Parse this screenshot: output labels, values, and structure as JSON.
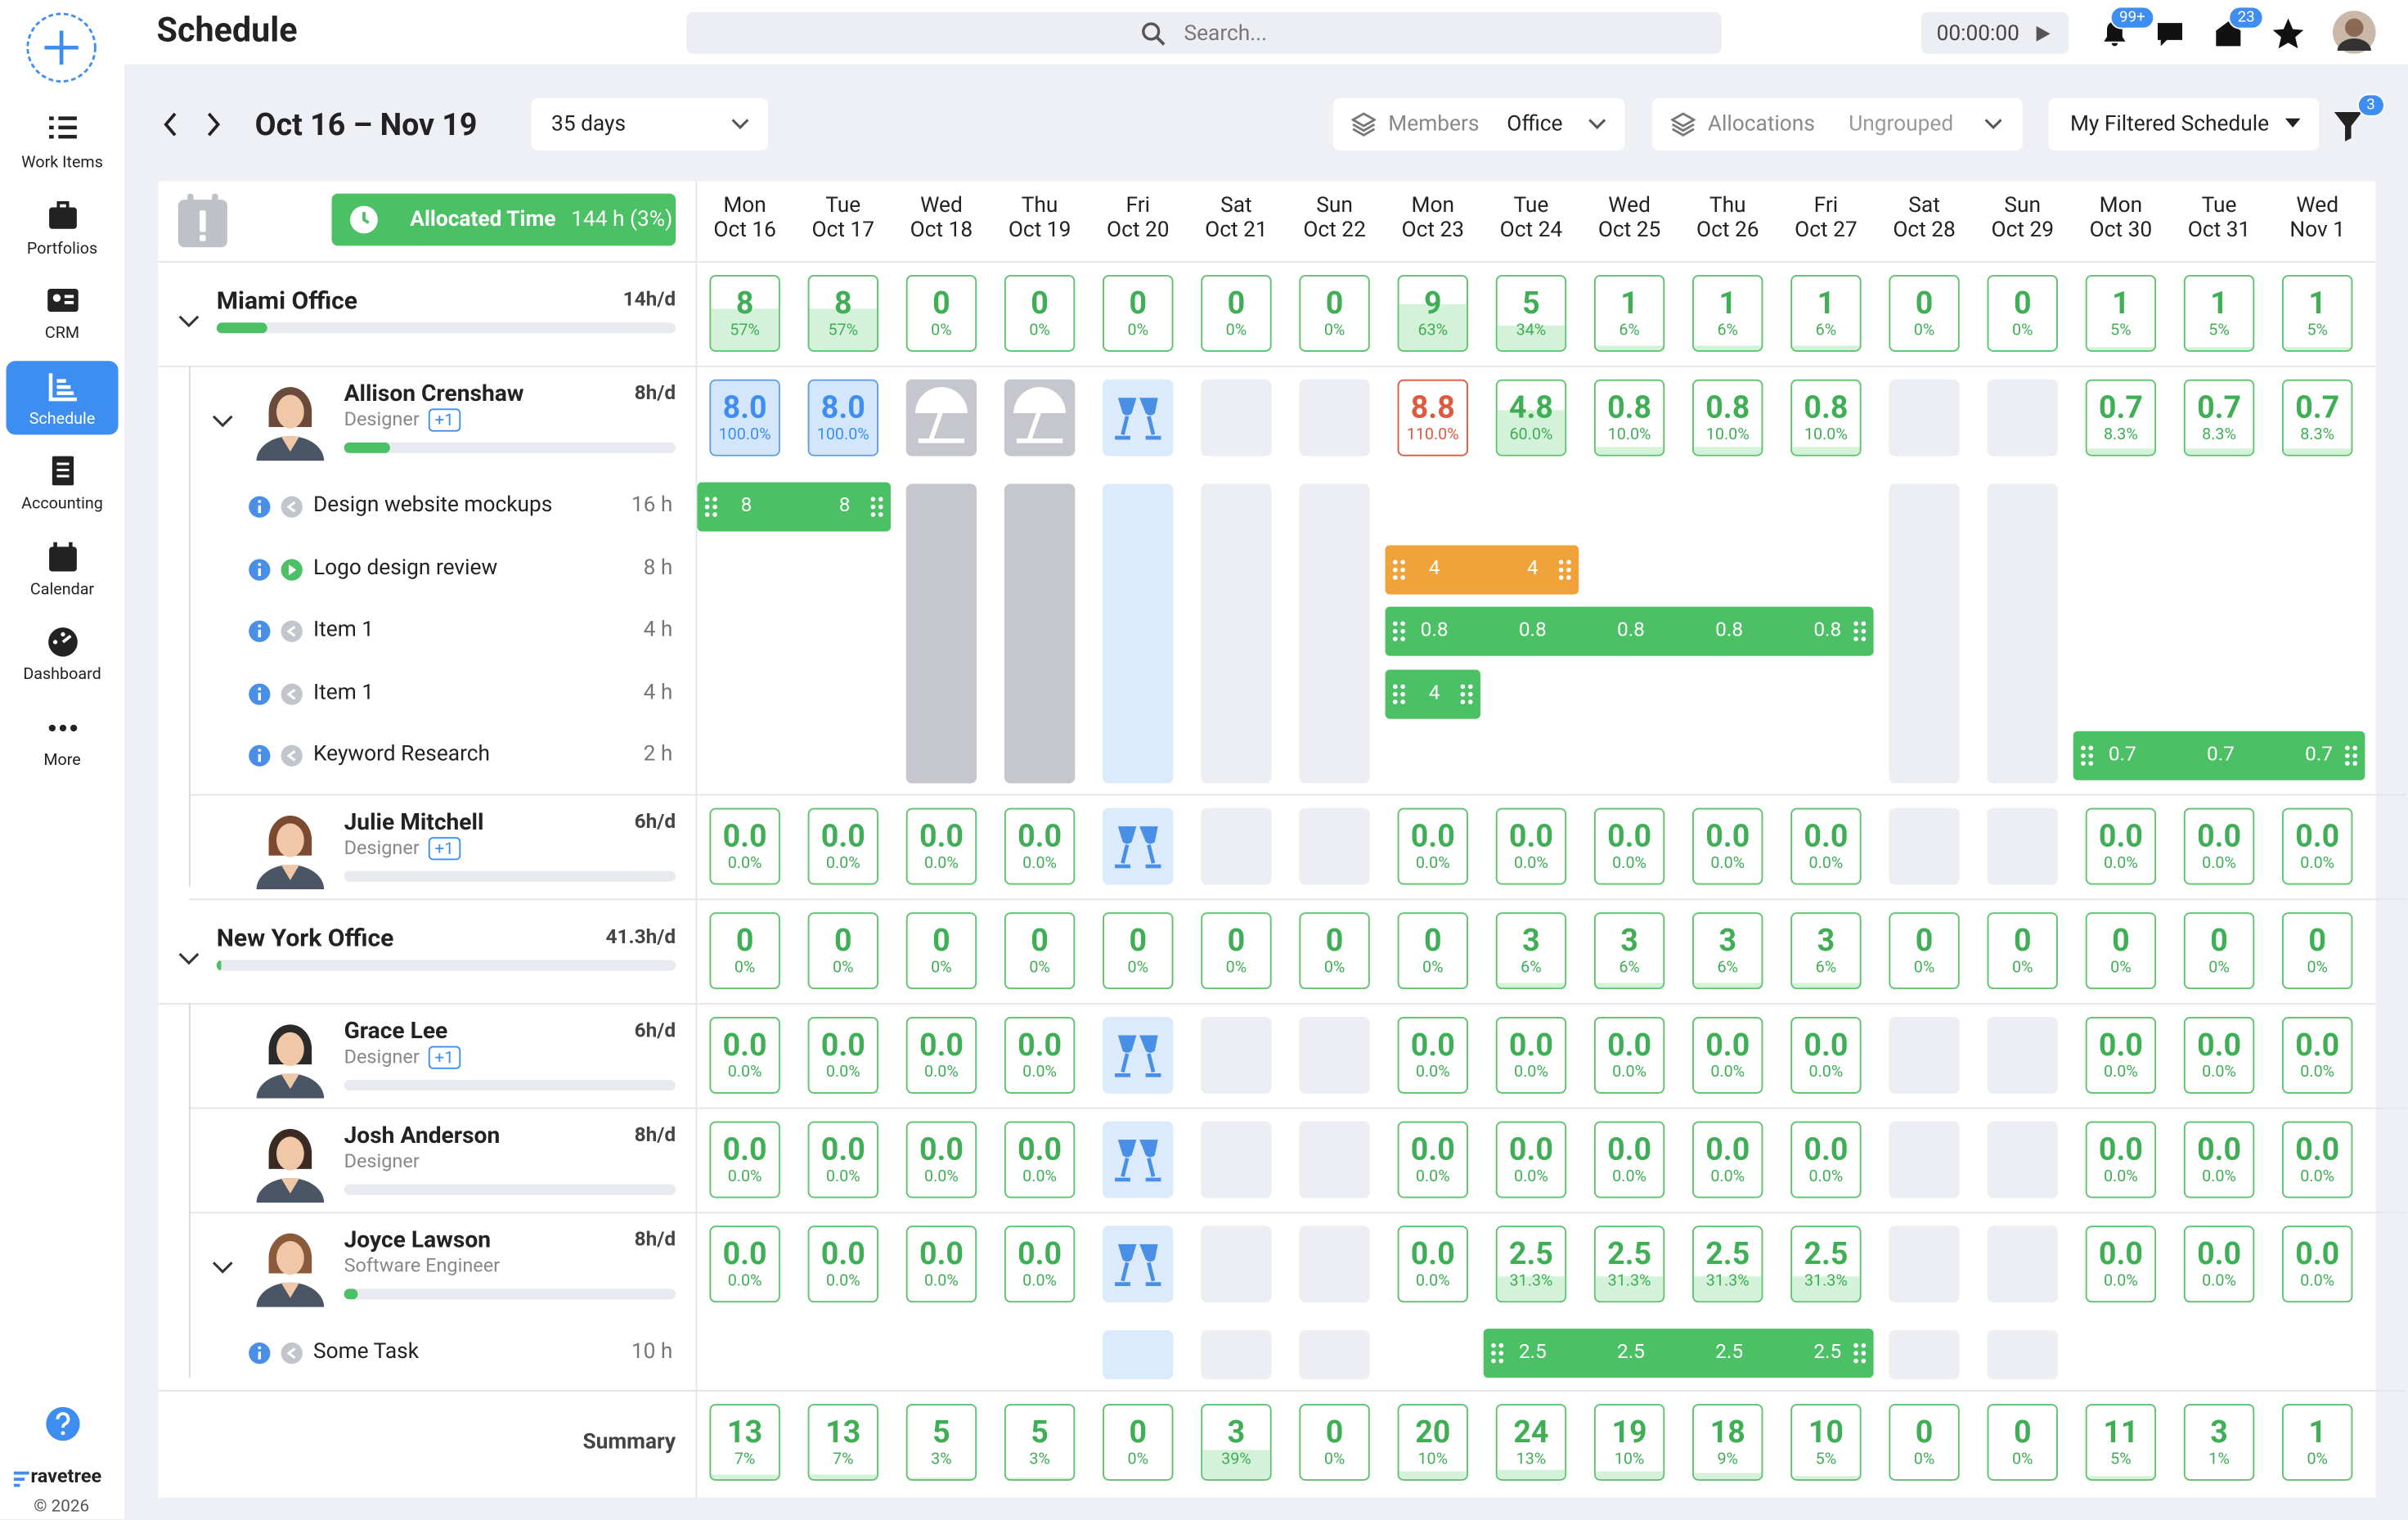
{
  "sidebar": {
    "items": [
      {
        "label": "Work Items"
      },
      {
        "label": "Portfolios"
      },
      {
        "label": "CRM"
      },
      {
        "label": "Schedule"
      },
      {
        "label": "Accounting"
      },
      {
        "label": "Calendar"
      },
      {
        "label": "Dashboard"
      },
      {
        "label": "More"
      }
    ],
    "active": 3,
    "brand": "ravetree",
    "copyright": "© 2026"
  },
  "header": {
    "title": "Schedule",
    "search": "Search...",
    "timer": "00:00:00",
    "notifications": "99+",
    "inbox": "23"
  },
  "toolbar": {
    "range": "Oct 16 – Nov 19",
    "period": "35 days",
    "members_label": "Members",
    "members_value": "Office",
    "allocations_label": "Allocations",
    "allocations_value": "Ungrouped",
    "filter": "My Filtered Schedule",
    "filter_count": "3"
  },
  "grid": {
    "allocated_label": "Allocated Time",
    "allocated_value": "144 h (3%)",
    "days": [
      {
        "dow": "Mon",
        "date": "Oct 16"
      },
      {
        "dow": "Tue",
        "date": "Oct 17"
      },
      {
        "dow": "Wed",
        "date": "Oct 18"
      },
      {
        "dow": "Thu",
        "date": "Oct 19"
      },
      {
        "dow": "Fri",
        "date": "Oct 20"
      },
      {
        "dow": "Sat",
        "date": "Oct 21"
      },
      {
        "dow": "Sun",
        "date": "Oct 22"
      },
      {
        "dow": "Mon",
        "date": "Oct 23"
      },
      {
        "dow": "Tue",
        "date": "Oct 24"
      },
      {
        "dow": "Wed",
        "date": "Oct 25"
      },
      {
        "dow": "Thu",
        "date": "Oct 26"
      },
      {
        "dow": "Fri",
        "date": "Oct 27"
      },
      {
        "dow": "Sat",
        "date": "Oct 28"
      },
      {
        "dow": "Sun",
        "date": "Oct 29"
      },
      {
        "dow": "Mon",
        "date": "Oct 30"
      },
      {
        "dow": "Tue",
        "date": "Oct 31"
      },
      {
        "dow": "Wed",
        "date": "Nov 1"
      }
    ],
    "groups": [
      {
        "name": "Miami Office",
        "rate": "14h/d",
        "progress": 0.11,
        "cells": [
          {
            "v": "8",
            "p": "57%"
          },
          {
            "v": "8",
            "p": "57%"
          },
          {
            "v": "0",
            "p": "0%"
          },
          {
            "v": "0",
            "p": "0%"
          },
          {
            "v": "0",
            "p": "0%"
          },
          {
            "v": "0",
            "p": "0%"
          },
          {
            "v": "0",
            "p": "0%"
          },
          {
            "v": "9",
            "p": "63%"
          },
          {
            "v": "5",
            "p": "34%"
          },
          {
            "v": "1",
            "p": "6%"
          },
          {
            "v": "1",
            "p": "6%"
          },
          {
            "v": "1",
            "p": "6%"
          },
          {
            "v": "0",
            "p": "0%"
          },
          {
            "v": "0",
            "p": "0%"
          },
          {
            "v": "1",
            "p": "5%"
          },
          {
            "v": "1",
            "p": "5%"
          },
          {
            "v": "1",
            "p": "5%"
          }
        ],
        "members": [
          {
            "name": "Allison Crenshaw",
            "role": "Designer",
            "extra": "+1",
            "rate": "8h/d",
            "progress": 0.14,
            "avatar": "#6a4a3a",
            "cells": [
              {
                "v": "8.0",
                "p": "100.0%"
              },
              {
                "v": "8.0",
                "p": "100.0%"
              },
              {
                "kind": "vacation"
              },
              {
                "kind": "vacation"
              },
              {
                "kind": "holiday"
              },
              {
                "kind": "off"
              },
              {
                "kind": "off"
              },
              {
                "v": "8.8",
                "p": "110.0%"
              },
              {
                "v": "4.8",
                "p": "60.0%"
              },
              {
                "v": "0.8",
                "p": "10.0%"
              },
              {
                "v": "0.8",
                "p": "10.0%"
              },
              {
                "v": "0.8",
                "p": "10.0%"
              },
              {
                "kind": "off"
              },
              {
                "kind": "off"
              },
              {
                "v": "0.7",
                "p": "8.3%"
              },
              {
                "v": "0.7",
                "p": "8.3%"
              },
              {
                "v": "0.7",
                "p": "8.3%"
              }
            ],
            "tasks": [
              {
                "name": "Design website mockups",
                "hours": "16 h",
                "status": "idle",
                "bars": [
                  {
                    "color": "#4cc064",
                    "labels": [
                      "8",
                      "8",
                      null,
                      null,
                      null,
                      null,
                      null,
                      null,
                      null,
                      null,
                      null,
                      null,
                      null,
                      null,
                      null,
                      null,
                      null
                    ]
                  }
                ]
              },
              {
                "name": "Logo design review",
                "hours": "8 h",
                "status": "active",
                "bars": [
                  {
                    "color": "#f0a23b",
                    "labels": [
                      null,
                      null,
                      null,
                      null,
                      null,
                      null,
                      null,
                      "4",
                      "4",
                      null,
                      null,
                      null,
                      null,
                      null,
                      null,
                      null,
                      null
                    ]
                  }
                ]
              },
              {
                "name": "Item 1",
                "hours": "4 h",
                "status": "idle",
                "bars": [
                  {
                    "color": "#4cc064",
                    "labels": [
                      null,
                      null,
                      null,
                      null,
                      null,
                      null,
                      null,
                      "0.8",
                      "0.8",
                      "0.8",
                      "0.8",
                      "0.8",
                      null,
                      null,
                      null,
                      null,
                      null
                    ]
                  }
                ]
              },
              {
                "name": "Item 1",
                "hours": "4 h",
                "status": "idle",
                "bars": [
                  {
                    "color": "#4cc064",
                    "labels": [
                      null,
                      null,
                      null,
                      null,
                      null,
                      null,
                      null,
                      "4",
                      null,
                      null,
                      null,
                      null,
                      null,
                      null,
                      null,
                      null,
                      null
                    ]
                  }
                ]
              },
              {
                "name": "Keyword Research",
                "hours": "2 h",
                "status": "idle",
                "bars": [
                  {
                    "color": "#4cc064",
                    "labels": [
                      null,
                      null,
                      null,
                      null,
                      null,
                      null,
                      null,
                      null,
                      null,
                      null,
                      null,
                      null,
                      null,
                      null,
                      "0.7",
                      "0.7",
                      "0.7"
                    ]
                  }
                ]
              }
            ]
          },
          {
            "name": "Julie Mitchell",
            "role": "Designer",
            "extra": "+1",
            "rate": "6h/d",
            "progress": 0,
            "avatar": "#7b4a30",
            "cells": [
              {
                "v": "0.0",
                "p": "0.0%"
              },
              {
                "v": "0.0",
                "p": "0.0%"
              },
              {
                "v": "0.0",
                "p": "0.0%"
              },
              {
                "v": "0.0",
                "p": "0.0%"
              },
              {
                "kind": "holiday"
              },
              {
                "kind": "off"
              },
              {
                "kind": "off"
              },
              {
                "v": "0.0",
                "p": "0.0%"
              },
              {
                "v": "0.0",
                "p": "0.0%"
              },
              {
                "v": "0.0",
                "p": "0.0%"
              },
              {
                "v": "0.0",
                "p": "0.0%"
              },
              {
                "v": "0.0",
                "p": "0.0%"
              },
              {
                "kind": "off"
              },
              {
                "kind": "off"
              },
              {
                "v": "0.0",
                "p": "0.0%"
              },
              {
                "v": "0.0",
                "p": "0.0%"
              },
              {
                "v": "0.0",
                "p": "0.0%"
              }
            ],
            "tasks": []
          }
        ]
      },
      {
        "name": "New York Office",
        "rate": "41.3h/d",
        "progress": 0.01,
        "cells": [
          {
            "v": "0",
            "p": "0%"
          },
          {
            "v": "0",
            "p": "0%"
          },
          {
            "v": "0",
            "p": "0%"
          },
          {
            "v": "0",
            "p": "0%"
          },
          {
            "v": "0",
            "p": "0%"
          },
          {
            "v": "0",
            "p": "0%"
          },
          {
            "v": "0",
            "p": "0%"
          },
          {
            "v": "0",
            "p": "0%"
          },
          {
            "v": "3",
            "p": "6%"
          },
          {
            "v": "3",
            "p": "6%"
          },
          {
            "v": "3",
            "p": "6%"
          },
          {
            "v": "3",
            "p": "6%"
          },
          {
            "v": "0",
            "p": "0%"
          },
          {
            "v": "0",
            "p": "0%"
          },
          {
            "v": "0",
            "p": "0%"
          },
          {
            "v": "0",
            "p": "0%"
          },
          {
            "v": "0",
            "p": "0%"
          }
        ],
        "members": [
          {
            "name": "Grace Lee",
            "role": "Designer",
            "extra": "+1",
            "rate": "6h/d",
            "progress": 0,
            "avatar": "#2a2a2a",
            "cells": [
              {
                "v": "0.0",
                "p": "0.0%"
              },
              {
                "v": "0.0",
                "p": "0.0%"
              },
              {
                "v": "0.0",
                "p": "0.0%"
              },
              {
                "v": "0.0",
                "p": "0.0%"
              },
              {
                "kind": "holiday"
              },
              {
                "kind": "off"
              },
              {
                "kind": "off"
              },
              {
                "v": "0.0",
                "p": "0.0%"
              },
              {
                "v": "0.0",
                "p": "0.0%"
              },
              {
                "v": "0.0",
                "p": "0.0%"
              },
              {
                "v": "0.0",
                "p": "0.0%"
              },
              {
                "v": "0.0",
                "p": "0.0%"
              },
              {
                "kind": "off"
              },
              {
                "kind": "off"
              },
              {
                "v": "0.0",
                "p": "0.0%"
              },
              {
                "v": "0.0",
                "p": "0.0%"
              },
              {
                "v": "0.0",
                "p": "0.0%"
              }
            ],
            "tasks": []
          },
          {
            "name": "Josh Anderson",
            "role": "Designer",
            "rate": "8h/d",
            "progress": 0,
            "avatar": "#3a2a22",
            "cells": [
              {
                "v": "0.0",
                "p": "0.0%"
              },
              {
                "v": "0.0",
                "p": "0.0%"
              },
              {
                "v": "0.0",
                "p": "0.0%"
              },
              {
                "v": "0.0",
                "p": "0.0%"
              },
              {
                "kind": "holiday"
              },
              {
                "kind": "off"
              },
              {
                "kind": "off"
              },
              {
                "v": "0.0",
                "p": "0.0%"
              },
              {
                "v": "0.0",
                "p": "0.0%"
              },
              {
                "v": "0.0",
                "p": "0.0%"
              },
              {
                "v": "0.0",
                "p": "0.0%"
              },
              {
                "v": "0.0",
                "p": "0.0%"
              },
              {
                "kind": "off"
              },
              {
                "kind": "off"
              },
              {
                "v": "0.0",
                "p": "0.0%"
              },
              {
                "v": "0.0",
                "p": "0.0%"
              },
              {
                "v": "0.0",
                "p": "0.0%"
              }
            ],
            "tasks": []
          },
          {
            "name": "Joyce Lawson",
            "role": "Software Engineer",
            "rate": "8h/d",
            "progress": 0.04,
            "avatar": "#8a5a3a",
            "cells": [
              {
                "v": "0.0",
                "p": "0.0%"
              },
              {
                "v": "0.0",
                "p": "0.0%"
              },
              {
                "v": "0.0",
                "p": "0.0%"
              },
              {
                "v": "0.0",
                "p": "0.0%"
              },
              {
                "kind": "holiday"
              },
              {
                "kind": "off"
              },
              {
                "kind": "off"
              },
              {
                "v": "0.0",
                "p": "0.0%"
              },
              {
                "v": "2.5",
                "p": "31.3%"
              },
              {
                "v": "2.5",
                "p": "31.3%"
              },
              {
                "v": "2.5",
                "p": "31.3%"
              },
              {
                "v": "2.5",
                "p": "31.3%"
              },
              {
                "kind": "off"
              },
              {
                "kind": "off"
              },
              {
                "v": "0.0",
                "p": "0.0%"
              },
              {
                "v": "0.0",
                "p": "0.0%"
              },
              {
                "v": "0.0",
                "p": "0.0%"
              }
            ],
            "tasks": [
              {
                "name": "Some Task",
                "hours": "10 h",
                "status": "idle",
                "bars": [
                  {
                    "color": "#4cc064",
                    "labels": [
                      null,
                      null,
                      null,
                      null,
                      null,
                      null,
                      null,
                      null,
                      "2.5",
                      "2.5",
                      "2.5",
                      "2.5",
                      null,
                      null,
                      null,
                      null,
                      null
                    ]
                  }
                ]
              }
            ]
          }
        ]
      }
    ],
    "summary": {
      "label": "Summary",
      "cells": [
        {
          "v": "13",
          "p": "7%"
        },
        {
          "v": "13",
          "p": "7%"
        },
        {
          "v": "5",
          "p": "3%"
        },
        {
          "v": "5",
          "p": "3%"
        },
        {
          "v": "0",
          "p": "0%"
        },
        {
          "v": "3",
          "p": "39%"
        },
        {
          "v": "0",
          "p": "0%"
        },
        {
          "v": "20",
          "p": "10%"
        },
        {
          "v": "24",
          "p": "13%"
        },
        {
          "v": "19",
          "p": "10%"
        },
        {
          "v": "18",
          "p": "9%"
        },
        {
          "v": "10",
          "p": "5%"
        },
        {
          "v": "0",
          "p": "0%"
        },
        {
          "v": "0",
          "p": "0%"
        },
        {
          "v": "11",
          "p": "5%"
        },
        {
          "v": "3",
          "p": "1%"
        },
        {
          "v": "1",
          "p": "0%"
        }
      ]
    }
  }
}
